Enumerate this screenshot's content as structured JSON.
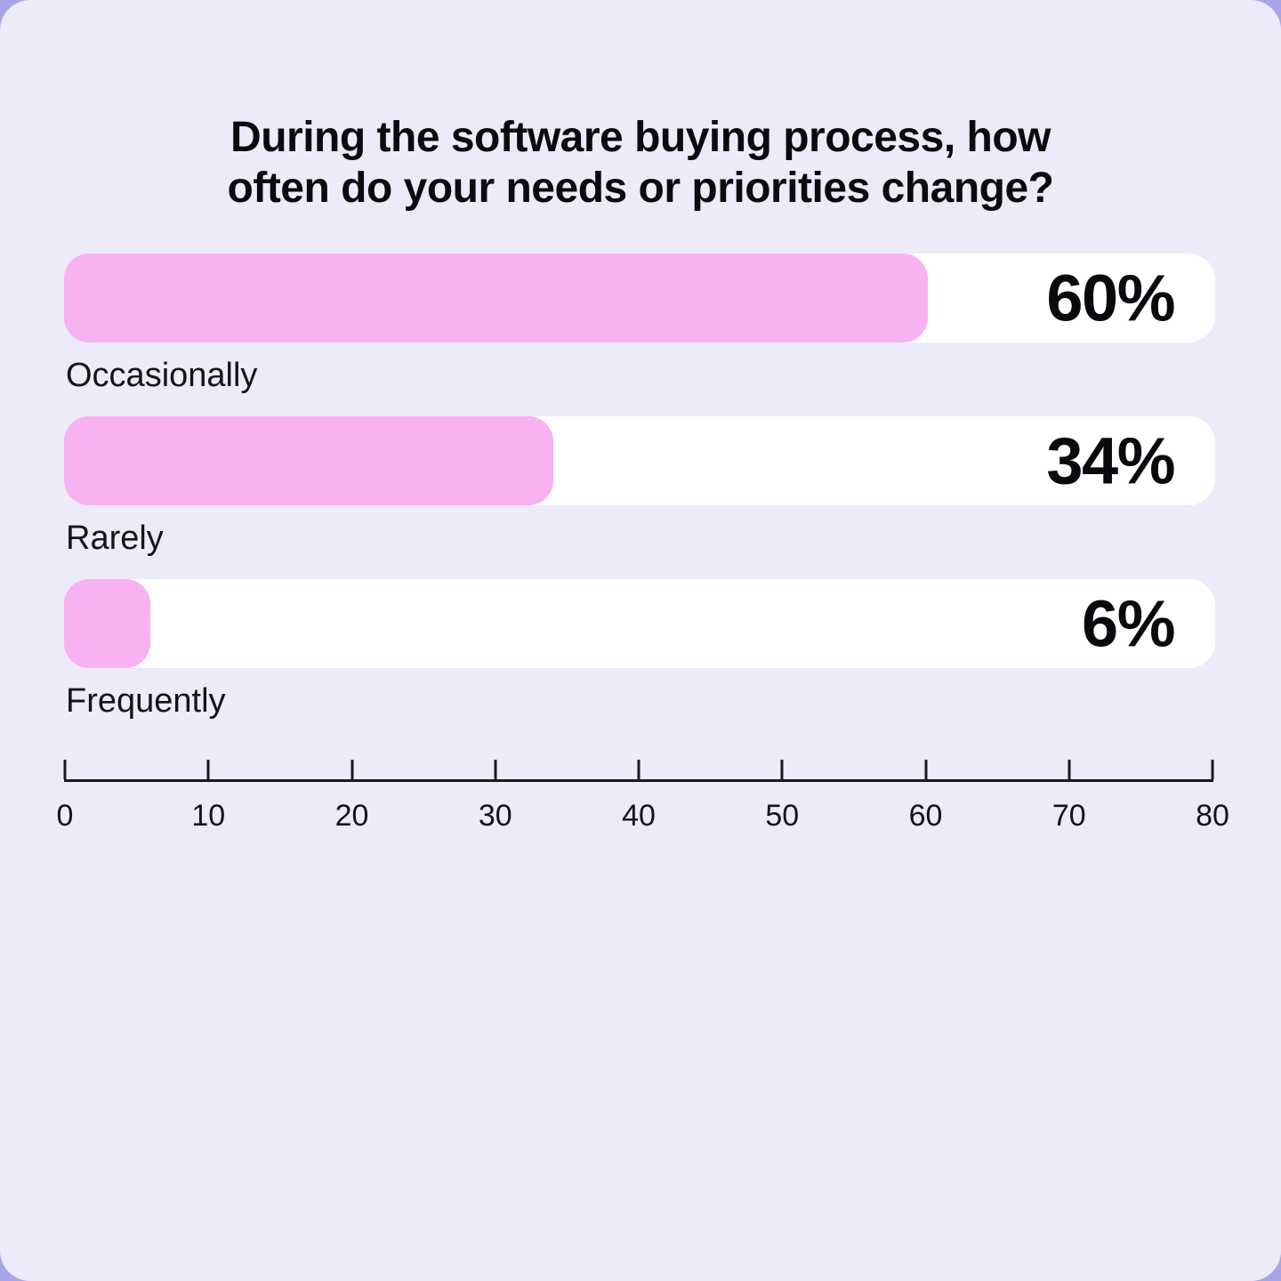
{
  "colors": {
    "page_behind_card": "#a8a4e8",
    "card_background": "#edebf9",
    "track_background": "#ffffff",
    "bar_fill": "#f8b1f1",
    "text": "#0d0d12",
    "axis": "#1a1a1a"
  },
  "chart_data": {
    "type": "bar",
    "orientation": "horizontal",
    "title": "During the software buying process, how often do your needs or priorities change?",
    "title_lines": [
      "During the software buying process, how",
      "often do your needs or priorities change?"
    ],
    "categories": [
      "Occasionally",
      "Rarely",
      "Frequently"
    ],
    "values": [
      60,
      34,
      6
    ],
    "value_labels": [
      "60%",
      "34%",
      "6%"
    ],
    "xlabel": "",
    "ylabel": "",
    "xlim": [
      0,
      80
    ],
    "x_ticks": [
      0,
      10,
      20,
      30,
      40,
      50,
      60,
      70,
      80
    ],
    "grid": false,
    "legend": null
  }
}
